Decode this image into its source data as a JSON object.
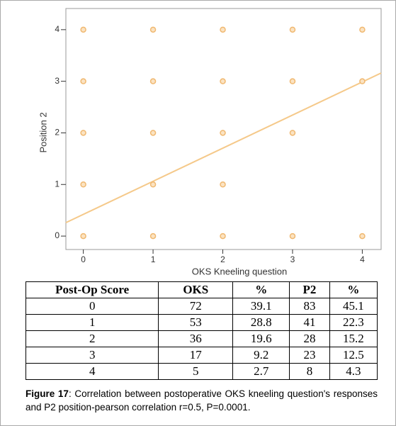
{
  "chart_data": {
    "type": "scatter",
    "xlabel": "OKS Kneeling question",
    "ylabel": "Position 2",
    "series": [
      {
        "color": "#f0b870",
        "x": [
          0,
          1,
          2,
          3,
          4,
          0,
          1,
          2,
          3,
          4,
          0,
          1,
          2,
          3,
          0,
          1,
          2,
          0,
          1,
          2,
          3,
          4
        ],
        "y": [
          4,
          4,
          4,
          4,
          4,
          3,
          3,
          3,
          3,
          3,
          2,
          2,
          2,
          2,
          1,
          1,
          1,
          0,
          0,
          0,
          0,
          0
        ]
      }
    ],
    "fit_line": {
      "color": "#f5c98a",
      "x": [
        -0.25,
        4.27
      ],
      "y": [
        0.26,
        3.16
      ]
    },
    "xlim": [
      -0.25,
      4.27
    ],
    "ylim": [
      -0.26,
      4.41
    ],
    "xticks": [
      0,
      1,
      2,
      3,
      4
    ],
    "yticks": [
      0,
      1,
      2,
      3,
      4
    ]
  },
  "table": {
    "header": [
      "Post-Op Score",
      "OKS",
      "%",
      "P2",
      "%"
    ],
    "rows": [
      [
        0,
        72,
        39.1,
        83,
        45.1
      ],
      [
        1,
        53,
        28.8,
        41,
        22.3
      ],
      [
        2,
        36,
        19.6,
        28,
        15.2
      ],
      [
        3,
        17,
        9.2,
        23,
        12.5
      ],
      [
        4,
        5,
        2.7,
        8,
        4.3
      ]
    ]
  },
  "caption": {
    "label": "Figure 17",
    "text": ": Correlation between postoperative OKS kneeling question's responses and P2 position-pearson correlation r=0.5, P=0.0001."
  }
}
